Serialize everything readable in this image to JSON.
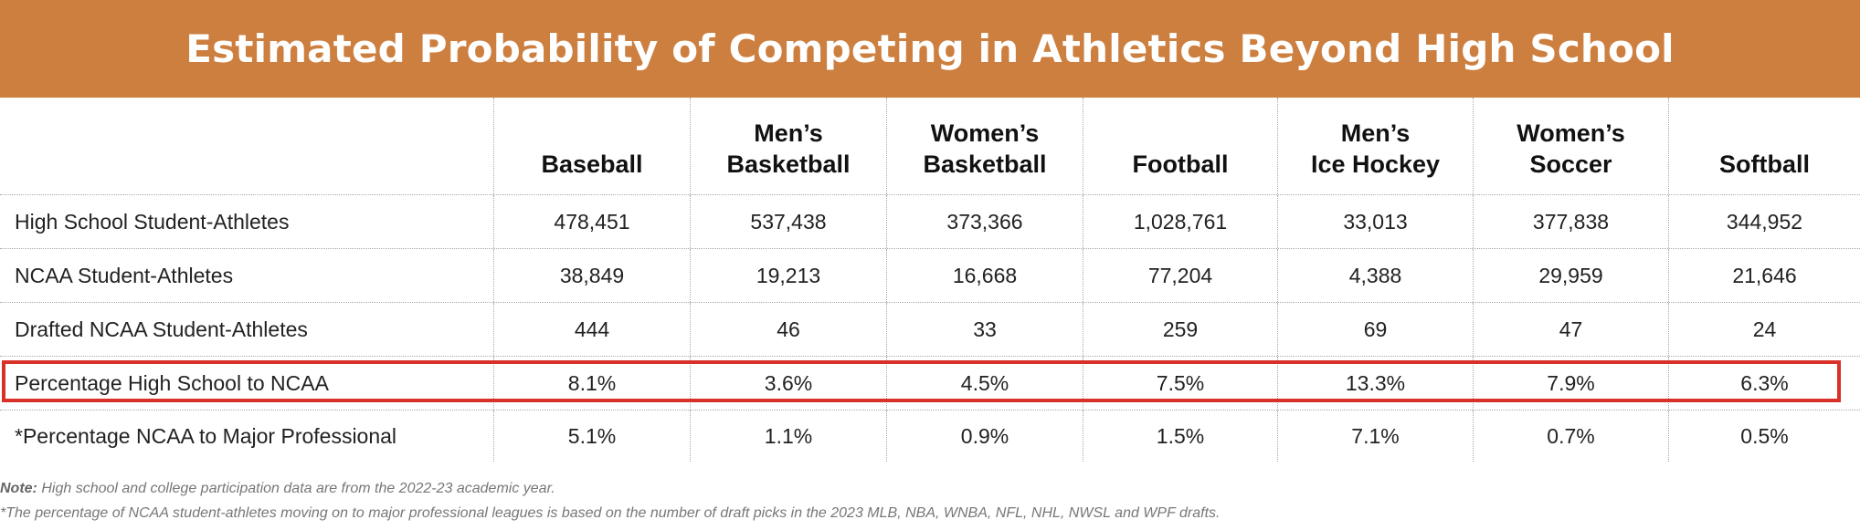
{
  "title": "Estimated Probability of Competing in Athletics Beyond High School",
  "columns": [
    "Baseball",
    "Men’s\nBasketball",
    "Women’s\nBasketball",
    "Football",
    "Men’s\nIce Hockey",
    "Women’s\nSoccer",
    "Softball"
  ],
  "rows": [
    {
      "label": "High School Student-Athletes",
      "values": [
        "478,451",
        "537,438",
        "373,366",
        "1,028,761",
        "33,013",
        "377,838",
        "344,952"
      ]
    },
    {
      "label": "NCAA Student-Athletes",
      "values": [
        "38,849",
        "19,213",
        "16,668",
        "77,204",
        "4,388",
        "29,959",
        "21,646"
      ]
    },
    {
      "label": "Drafted NCAA Student-Athletes",
      "values": [
        "444",
        "46",
        "33",
        "259",
        "69",
        "47",
        "24"
      ]
    },
    {
      "label": "Percentage High School to NCAA",
      "values": [
        "8.1%",
        "3.6%",
        "4.5%",
        "7.5%",
        "13.3%",
        "7.9%",
        "6.3%"
      ],
      "highlighted": true
    },
    {
      "label": "*Percentage NCAA to Major Professional",
      "values": [
        "5.1%",
        "1.1%",
        "0.9%",
        "1.5%",
        "7.1%",
        "0.7%",
        "0.5%"
      ]
    }
  ],
  "notes": {
    "note_label": "Note:",
    "note_text": " High school and college participation data are from the 2022-23 academic year.",
    "footnote": "*The percentage of NCAA student-athletes moving on to major professional leagues is based on the number of draft picks in the 2023 MLB, NBA, WNBA, NFL, NHL, NWSL and WPF drafts."
  },
  "colors": {
    "title_band": "#CD7F40",
    "highlight_border": "#D8312A"
  }
}
